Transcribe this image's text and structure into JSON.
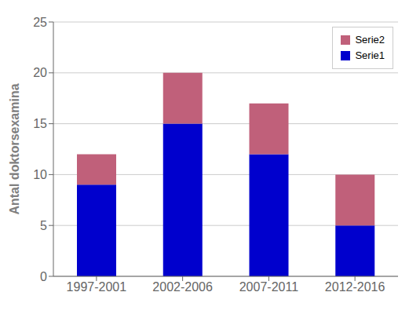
{
  "chart_data": {
    "type": "bar",
    "stacked": true,
    "categories": [
      "1997-2001",
      "2002-2006",
      "2007-2011",
      "2012-2016"
    ],
    "series": [
      {
        "name": "Serie1",
        "color": "#0000CD",
        "values": [
          9,
          15,
          12,
          5
        ]
      },
      {
        "name": "Serie2",
        "color": "#C0607A",
        "values": [
          3,
          5,
          5,
          5
        ]
      }
    ],
    "ylabel": "Antal doktorsexamina",
    "ylim": [
      0,
      25
    ],
    "yticks": [
      0,
      5,
      10,
      15,
      20,
      25
    ],
    "grid": true,
    "legend": "upper right"
  }
}
